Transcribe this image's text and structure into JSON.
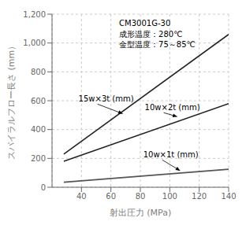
{
  "chart_data": {
    "type": "line",
    "title": "CM3001G-30\n成形温度：280℃\n金型温度：75～85℃",
    "x_label": "射出圧力 (MPa)",
    "y_label": "スパイラルフロー長さ (mm）",
    "xlim": [
      20,
      140
    ],
    "ylim": [
      0,
      1200
    ],
    "xticks": [
      40,
      60,
      80,
      100,
      120,
      140
    ],
    "yticks": [
      0,
      200,
      400,
      600,
      800,
      {
        "value": 1000,
        "label": "1,000"
      },
      {
        "value": 1200,
        "label": "1,200"
      }
    ],
    "grid": true,
    "series": [
      {
        "color": "#222222",
        "x": [
          28,
          140
        ],
        "values": [
          230,
          1060
        ]
      },
      {
        "color": "#222222",
        "x": [
          28,
          140
        ],
        "values": [
          180,
          580
        ]
      },
      {
        "color": "#555555",
        "x": [
          28,
          140
        ],
        "values": [
          35,
          125
        ]
      }
    ],
    "annotations": [
      {
        "text": "15w×3t (mm)",
        "xy": [
          68,
          510
        ],
        "xytext": [
          38,
          615
        ]
      },
      {
        "text": "10w×2t (mm)",
        "xy": [
          105,
          490
        ],
        "xytext": [
          83,
          555
        ]
      },
      {
        "text": "10w×1t (mm)",
        "xy": [
          107,
          115
        ],
        "xytext": [
          82,
          228
        ]
      }
    ]
  }
}
